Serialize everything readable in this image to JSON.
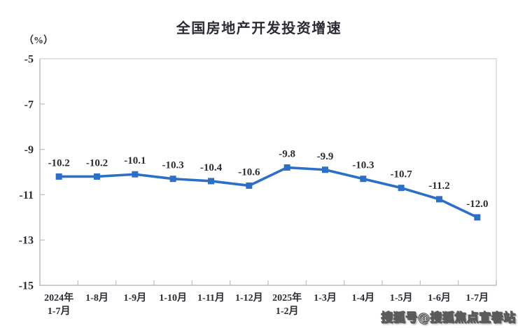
{
  "watermark": "搜狐号@搜狐焦点宜春站",
  "colors": {
    "line": "#2B6FC8",
    "axis": "#BEBEBE",
    "border": "#D9D9D9",
    "text": "#2B2B33"
  },
  "chart_data": {
    "type": "line",
    "title": "全国房地产开发投资增速",
    "ylabel": "（%）",
    "xlabel": "",
    "categories": [
      [
        "2024年",
        "1-7月"
      ],
      [
        "1-8月"
      ],
      [
        "1-9月"
      ],
      [
        "1-10月"
      ],
      [
        "1-11月"
      ],
      [
        "1-12月"
      ],
      [
        "2025年",
        "1-2月"
      ],
      [
        "1-3月"
      ],
      [
        "1-4月"
      ],
      [
        "1-5月"
      ],
      [
        "1-6月"
      ],
      [
        "1-7月"
      ]
    ],
    "values": [
      -10.2,
      -10.2,
      -10.1,
      -10.3,
      -10.4,
      -10.6,
      -9.8,
      -9.9,
      -10.3,
      -10.7,
      -11.2,
      -12.0
    ],
    "labels": [
      "-10.2",
      "-10.2",
      "-10.1",
      "-10.3",
      "-10.4",
      "-10.6",
      "-9.8",
      "-9.9",
      "-10.3",
      "-10.7",
      "-11.2",
      "-12.0"
    ],
    "ylim": [
      -15,
      -5
    ],
    "yticks": [
      -5,
      -7,
      -9,
      -11,
      -13,
      -15
    ],
    "grid": false,
    "legend_position": "none",
    "marker": "square"
  }
}
